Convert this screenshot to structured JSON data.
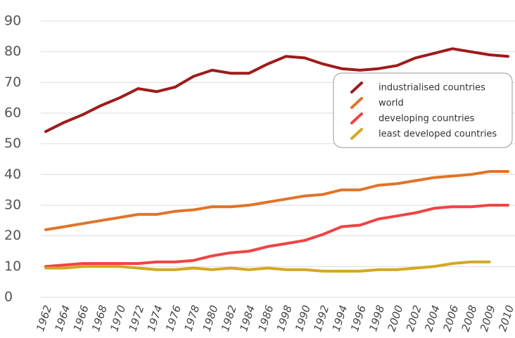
{
  "chart_data": {
    "type": "line",
    "categories": [
      "1962",
      "1964",
      "1966",
      "1968",
      "1970",
      "1972",
      "1974",
      "1976",
      "1978",
      "1980",
      "1982",
      "1984",
      "1986",
      "1998",
      "1990",
      "1992",
      "1994",
      "1996",
      "1998",
      "2000",
      "2002",
      "2004",
      "2006",
      "2008",
      "2009",
      "2010"
    ],
    "series": [
      {
        "name": "industrialised countries",
        "color": "#9e1b1b",
        "values": [
          54,
          57,
          59.5,
          62.5,
          65,
          68,
          67,
          68.5,
          72,
          74,
          73,
          73,
          76,
          78.5,
          78,
          76,
          74.5,
          74,
          74.5,
          75.5,
          78,
          79.5,
          81,
          80,
          79,
          78.5
        ]
      },
      {
        "name": "world",
        "color": "#e0742a",
        "values": [
          22,
          23,
          24,
          25,
          26,
          27,
          27,
          28,
          28.5,
          29.5,
          29.5,
          30,
          31,
          32,
          33,
          33.5,
          35,
          35,
          36.5,
          37,
          38,
          39,
          39.5,
          40,
          41,
          41
        ]
      },
      {
        "name": "developing countries",
        "color": "#ef4444",
        "values": [
          10,
          10.5,
          11,
          11,
          11,
          11,
          11.5,
          11.5,
          12,
          13.5,
          14.5,
          15,
          16.5,
          17.5,
          18.5,
          20.5,
          23,
          23.5,
          25.5,
          26.5,
          27.5,
          29,
          29.5,
          29.5,
          30,
          30
        ]
      },
      {
        "name": "least developed countries",
        "color": "#d4a820",
        "values": [
          9.5,
          9.5,
          10,
          10,
          10,
          9.5,
          9,
          9,
          9.5,
          9,
          9.5,
          9,
          9.5,
          9,
          9,
          8.5,
          8.5,
          8.5,
          9,
          9,
          9.5,
          10,
          11,
          11.5,
          11.5,
          null
        ]
      }
    ],
    "ylim": [
      0,
      90
    ],
    "yticks": [
      0,
      10,
      20,
      30,
      40,
      50,
      60,
      70,
      80,
      90
    ],
    "grid": true,
    "legend": "right"
  }
}
